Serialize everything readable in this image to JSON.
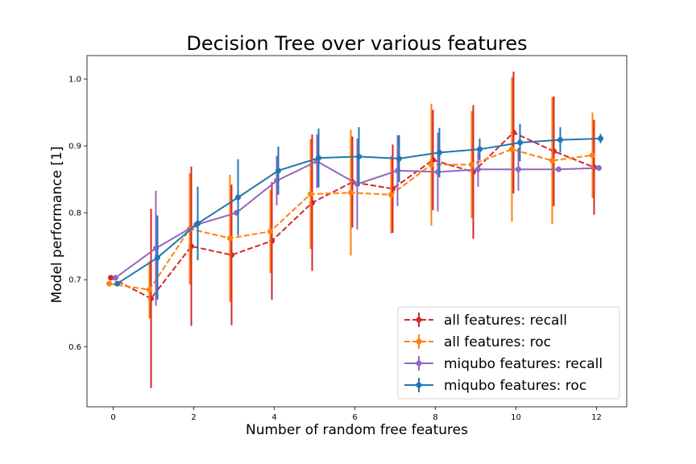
{
  "chart_data": {
    "type": "line",
    "title": "Decision Tree over various features",
    "xlabel": "Number of random free features",
    "ylabel": "Model performance [1]",
    "xlim": [
      -0.65,
      12.75
    ],
    "ylim": [
      0.51,
      1.035
    ],
    "xticks": [
      0,
      2,
      4,
      6,
      8,
      10,
      12
    ],
    "yticks": [
      0.6,
      0.7,
      0.8,
      0.9,
      1.0
    ],
    "xtick_labels": [
      "0",
      "2",
      "4",
      "6",
      "8",
      "10",
      "12"
    ],
    "ytick_labels": [
      "0.6",
      "0.7",
      "0.8",
      "0.9",
      "1.0"
    ],
    "grid": false,
    "legend_position": "lower-right",
    "series": [
      {
        "name": "all features: recall",
        "color": "#d62728",
        "style": "dashed",
        "x": [
          -0.06,
          0.94,
          1.94,
          2.94,
          3.94,
          4.94,
          5.94,
          6.94,
          7.94,
          8.94,
          9.94,
          10.94,
          11.94
        ],
        "y": [
          0.703,
          0.672,
          0.75,
          0.737,
          0.758,
          0.815,
          0.846,
          0.836,
          0.879,
          0.861,
          0.92,
          0.892,
          0.868
        ],
        "err": [
          0.0,
          0.134,
          0.119,
          0.105,
          0.088,
          0.102,
          0.068,
          0.066,
          0.075,
          0.1,
          0.091,
          0.082,
          0.071
        ]
      },
      {
        "name": "all features: roc",
        "color": "#ff7f0e",
        "style": "dashed",
        "x": [
          -0.1,
          0.9,
          1.9,
          2.9,
          3.9,
          4.9,
          5.9,
          6.9,
          7.9,
          8.9,
          9.9,
          10.9,
          11.9
        ],
        "y": [
          0.694,
          0.685,
          0.776,
          0.762,
          0.772,
          0.828,
          0.83,
          0.827,
          0.872,
          0.872,
          0.895,
          0.878,
          0.886
        ],
        "err": [
          0.0,
          0.043,
          0.083,
          0.095,
          0.062,
          0.082,
          0.094,
          0.058,
          0.091,
          0.08,
          0.108,
          0.095,
          0.064
        ]
      },
      {
        "name": "miqubo features: recall",
        "color": "#9467bd",
        "style": "solid",
        "x": [
          0.06,
          1.06,
          2.06,
          3.06,
          4.06,
          5.06,
          6.06,
          7.06,
          8.06,
          9.06,
          10.06,
          11.06,
          12.06
        ],
        "y": [
          0.703,
          0.747,
          0.782,
          0.8,
          0.848,
          0.877,
          0.843,
          0.863,
          0.861,
          0.865,
          0.865,
          0.865,
          0.867
        ],
        "err": [
          0.0,
          0.086,
          0.0,
          0.0,
          0.037,
          0.04,
          0.068,
          0.053,
          0.059,
          0.026,
          0.032,
          0.0,
          0.0
        ]
      },
      {
        "name": "miqubo features: roc",
        "color": "#1f77b4",
        "style": "solid",
        "x": [
          0.1,
          1.1,
          2.1,
          3.1,
          4.1,
          5.1,
          6.1,
          7.1,
          8.1,
          9.1,
          10.1,
          11.1,
          12.1
        ],
        "y": [
          0.694,
          0.733,
          0.784,
          0.823,
          0.863,
          0.882,
          0.884,
          0.881,
          0.89,
          0.895,
          0.905,
          0.909,
          0.911
        ],
        "err": [
          0.0,
          0.063,
          0.055,
          0.057,
          0.036,
          0.044,
          0.044,
          0.035,
          0.037,
          0.016,
          0.028,
          0.019,
          0.007
        ]
      }
    ]
  }
}
